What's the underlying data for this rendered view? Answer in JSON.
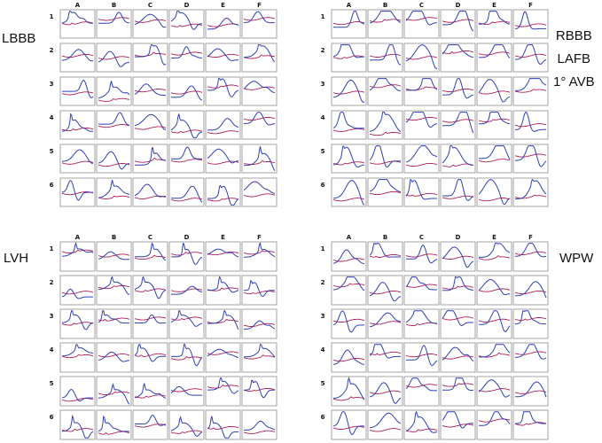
{
  "columns": [
    "A",
    "B",
    "C",
    "D",
    "E",
    "F"
  ],
  "rows": [
    "1",
    "2",
    "3",
    "4",
    "5",
    "6"
  ],
  "colors": {
    "trace_a": "#b01e5a",
    "trace_b": "#2f3fb8",
    "cell_border": "#9a9a9a"
  },
  "panels": [
    {
      "id": "lbbb",
      "label_lines": [
        "LBBB"
      ]
    },
    {
      "id": "rbbb",
      "label_lines": [
        "RBBB",
        "LAFB",
        "1° AVB"
      ]
    },
    {
      "id": "lvh",
      "label_lines": [
        "LVH"
      ]
    },
    {
      "id": "wpw",
      "label_lines": [
        "WPW"
      ]
    }
  ]
}
